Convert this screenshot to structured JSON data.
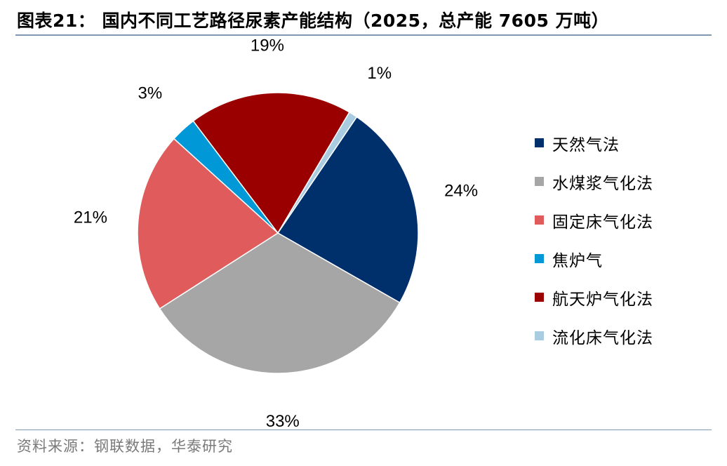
{
  "title": "图表21： 国内不同工艺路径尿素产能结构（2025，总产能 7605 万吨）",
  "source": "资料来源：钢联数据，华泰研究",
  "chart_data": {
    "type": "pie",
    "title": "图表21： 国内不同工艺路径尿素产能结构（2025，总产能 7605 万吨）",
    "unit": "%",
    "legend_position": "right",
    "slices": [
      {
        "name": "天然气法",
        "value": 24,
        "label": "24%",
        "color": "#00306b"
      },
      {
        "name": "水煤浆气化法",
        "value": 33,
        "label": "33%",
        "color": "#a6a6a6"
      },
      {
        "name": "固定床气化法",
        "value": 21,
        "label": "21%",
        "color": "#e05b5b"
      },
      {
        "name": "焦炉气",
        "value": 3,
        "label": "3%",
        "color": "#0098d6"
      },
      {
        "name": "航天炉气化法",
        "value": 19,
        "label": "19%",
        "color": "#9b0000"
      },
      {
        "name": "流化床气化法",
        "value": 1,
        "label": "1%",
        "color": "#a9cce0"
      }
    ]
  }
}
